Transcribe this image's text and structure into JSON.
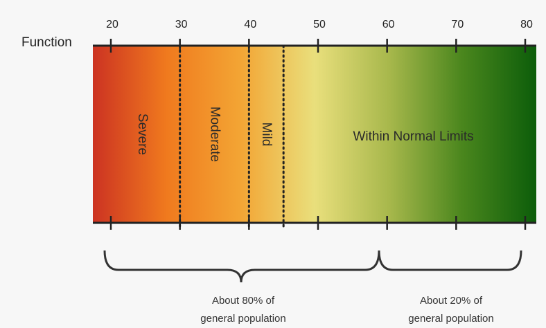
{
  "row_label": "Function",
  "ticks": [
    20,
    30,
    40,
    50,
    60,
    70,
    80
  ],
  "tick_labels": [
    "20",
    "30",
    "40",
    "50",
    "60",
    "70",
    "80"
  ],
  "gradient_colors": [
    "#cc3322",
    "#f07a1e",
    "#f3a534",
    "#e9df7c",
    "#a8b84c",
    "#4a861d",
    "#0c5d0a"
  ],
  "thresholds": [
    30,
    40,
    45
  ],
  "zones": [
    {
      "label": "Severe",
      "center": 24.5,
      "rotation": "cw"
    },
    {
      "label": "Moderate",
      "center": 35,
      "rotation": "cw"
    },
    {
      "label": "Mild",
      "center": 42.5,
      "rotation": "cw"
    },
    {
      "label": "Within Normal Limits",
      "center": 63.8,
      "rotation": "none"
    }
  ],
  "population": {
    "left_text": [
      "About 80% of",
      "general population"
    ],
    "right_text": [
      "About 20% of",
      "general population"
    ]
  }
}
